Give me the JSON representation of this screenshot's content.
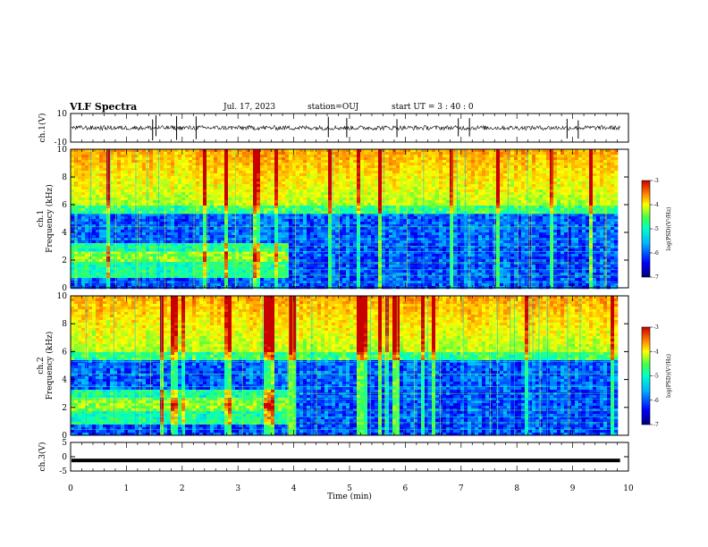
{
  "header": {
    "title": "VLF Spectra",
    "date": "Jul. 17, 2023",
    "station": "station=OUJ",
    "start": "start UT =  3 : 40 : 0"
  },
  "chart_data": [
    {
      "type": "line",
      "name": "waveform-ch1",
      "ylabel": "ch.1(V)",
      "ylim": [
        -10,
        10
      ],
      "y_ticks": [
        "10",
        "-10"
      ],
      "xlim": [
        0,
        10
      ],
      "baseline": 0,
      "spikes_x_min": [
        1.47,
        1.53,
        1.9,
        2.25,
        4.62,
        4.95,
        5.85,
        6.95,
        7.15,
        8.9,
        9.1
      ]
    },
    {
      "type": "heatmap",
      "name": "spectrogram-ch1",
      "ylabel": "ch.1\nFrequency (kHz)",
      "ylabel_line1": "ch.1",
      "ylabel_line2": "Frequency (kHz)",
      "ylim": [
        0,
        10
      ],
      "y_ticks": [
        "0",
        "2",
        "4",
        "6",
        "8",
        "10"
      ],
      "xlim": [
        0,
        10
      ],
      "data_end_min": 9.8,
      "band_change_min": 3.9,
      "colorbar": {
        "label": "log(PSD)(V²/Hz)",
        "range": [
          -7,
          -3
        ],
        "ticks": [
          "-3",
          "-4",
          "-5",
          "-6",
          "-7"
        ]
      }
    },
    {
      "type": "heatmap",
      "name": "spectrogram-ch2",
      "ylabel_line1": "ch.2",
      "ylabel_line2": "Frequency (kHz)",
      "ylim": [
        0,
        10
      ],
      "y_ticks": [
        "0",
        "2",
        "4",
        "6",
        "8",
        "10"
      ],
      "xlim": [
        0,
        10
      ],
      "data_end_min": 9.8,
      "band_change_min": 3.9,
      "colorbar": {
        "label": "log(PSD)(V²/Hz)",
        "range": [
          -7,
          -3
        ],
        "ticks": [
          "-3",
          "-4",
          "-5",
          "-6",
          "-7"
        ]
      }
    },
    {
      "type": "line",
      "name": "waveform-ch3",
      "ylabel": "ch.3(V)",
      "ylim": [
        -5,
        5
      ],
      "y_ticks": [
        "5",
        "0",
        "-5"
      ],
      "xlim": [
        0,
        10
      ],
      "baseline": -1.3,
      "xlabel": "Time (min)",
      "x_ticks": [
        "0",
        "1",
        "2",
        "3",
        "4",
        "5",
        "6",
        "7",
        "8",
        "9",
        "10"
      ]
    }
  ],
  "colors": {
    "colormap": [
      "#00007a",
      "#0000ff",
      "#00b4ff",
      "#00ffc8",
      "#46ff46",
      "#ffff00",
      "#ff7800",
      "#c80000"
    ],
    "line": "#000000"
  }
}
